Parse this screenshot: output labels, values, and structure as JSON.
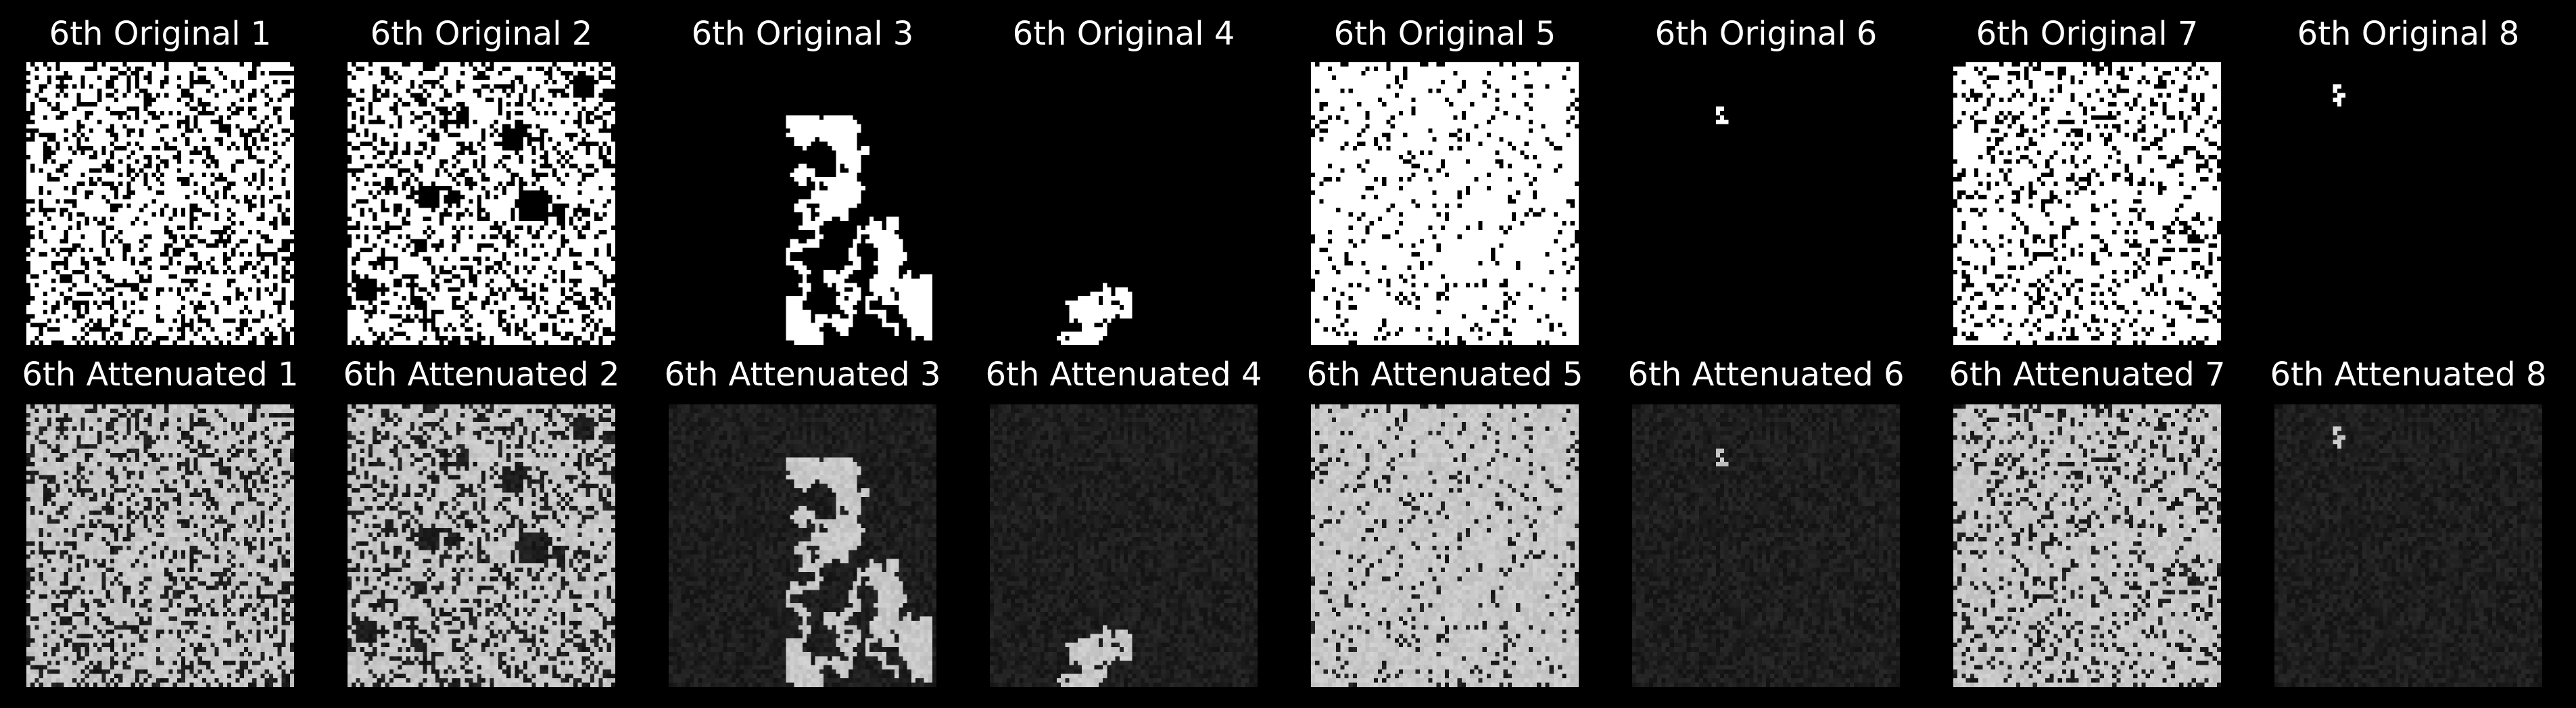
{
  "figure": {
    "background": "#000000",
    "title_color": "#ffffff",
    "rows": [
      {
        "kind": "original",
        "panels": [
          {
            "title": "6th Original 1",
            "pattern": "dense-noise",
            "foreground": "#ffffff",
            "background": "#000000"
          },
          {
            "title": "6th Original 2",
            "pattern": "dense-noise-with-holes",
            "foreground": "#ffffff",
            "background": "#000000"
          },
          {
            "title": "6th Original 3",
            "pattern": "branching-cluster-right",
            "foreground": "#ffffff",
            "background": "#000000"
          },
          {
            "title": "6th Original 4",
            "pattern": "small-cluster-bottom",
            "foreground": "#ffffff",
            "background": "#000000"
          },
          {
            "title": "6th Original 5",
            "pattern": "sparse-dots-on-white",
            "foreground": "#ffffff",
            "background": "#000000"
          },
          {
            "title": "6th Original 6",
            "pattern": "tiny-speck-top",
            "foreground": "#ffffff",
            "background": "#000000"
          },
          {
            "title": "6th Original 7",
            "pattern": "medium-noise",
            "foreground": "#ffffff",
            "background": "#000000"
          },
          {
            "title": "6th Original 8",
            "pattern": "tiny-speck-top-left",
            "foreground": "#ffffff",
            "background": "#000000"
          }
        ]
      },
      {
        "kind": "attenuated",
        "panels": [
          {
            "title": "6th Attenuated 1",
            "pattern": "dense-noise",
            "foreground": "#c8c8c8",
            "background": "#1e1e1e"
          },
          {
            "title": "6th Attenuated 2",
            "pattern": "dense-noise-with-holes",
            "foreground": "#c8c8c8",
            "background": "#1e1e1e"
          },
          {
            "title": "6th Attenuated 3",
            "pattern": "branching-cluster-right",
            "foreground": "#c8c8c8",
            "background": "#1e1e1e"
          },
          {
            "title": "6th Attenuated 4",
            "pattern": "small-cluster-bottom",
            "foreground": "#c8c8c8",
            "background": "#1e1e1e"
          },
          {
            "title": "6th Attenuated 5",
            "pattern": "sparse-dots-on-white",
            "foreground": "#c8c8c8",
            "background": "#1e1e1e"
          },
          {
            "title": "6th Attenuated 6",
            "pattern": "tiny-speck-top",
            "foreground": "#c8c8c8",
            "background": "#1e1e1e"
          },
          {
            "title": "6th Attenuated 7",
            "pattern": "medium-noise",
            "foreground": "#c8c8c8",
            "background": "#1e1e1e"
          },
          {
            "title": "6th Attenuated 8",
            "pattern": "tiny-speck-top-left",
            "foreground": "#c8c8c8",
            "background": "#1e1e1e"
          }
        ]
      }
    ]
  }
}
